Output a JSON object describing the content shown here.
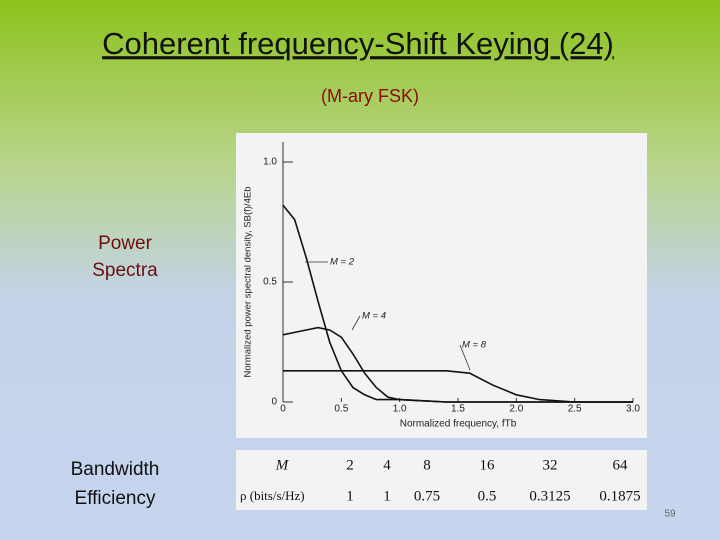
{
  "header": {
    "title": "Coherent frequency-Shift Keying (24)",
    "subtitle": "(M-ary FSK)"
  },
  "labels": {
    "spectra": "Power Spectra",
    "efficiency": "Bandwidth Efficiency"
  },
  "chart_data": {
    "type": "line",
    "y_label": "Normalized power spectral density, SB(f)/4Eb",
    "x_label": "Normalized frequency, fTb",
    "x": [
      0,
      0.1,
      0.2,
      0.3,
      0.4,
      0.5,
      0.6,
      0.7,
      0.8,
      0.9,
      1.0,
      1.2,
      1.4,
      1.6,
      1.8,
      2.0,
      2.2,
      2.5,
      3.0
    ],
    "series": [
      {
        "name": "M = 2",
        "color": "#111111",
        "values": [
          0.82,
          0.76,
          0.6,
          0.42,
          0.25,
          0.13,
          0.06,
          0.03,
          0.01,
          0.01,
          0.01,
          0.005,
          0,
          0,
          0,
          0,
          0,
          0,
          0
        ]
      },
      {
        "name": "M = 4",
        "color": "#111111",
        "values": [
          0.28,
          0.29,
          0.3,
          0.31,
          0.3,
          0.27,
          0.2,
          0.12,
          0.06,
          0.02,
          0.01,
          0.005,
          0,
          0,
          0,
          0,
          0,
          0,
          0
        ]
      },
      {
        "name": "M = 8",
        "color": "#111111",
        "values": [
          0.13,
          0.13,
          0.13,
          0.13,
          0.13,
          0.13,
          0.13,
          0.13,
          0.13,
          0.13,
          0.13,
          0.13,
          0.13,
          0.12,
          0.07,
          0.03,
          0.01,
          0,
          0
        ]
      }
    ],
    "xlim": [
      0,
      3
    ],
    "ylim": [
      0,
      1
    ],
    "xticks": [
      0,
      0.5,
      {
        "value": 1,
        "label": "1.0"
      },
      1.5,
      {
        "value": 2,
        "label": "2.0"
      },
      2.5,
      {
        "value": 3,
        "label": "3.0"
      }
    ],
    "yticks": [
      0,
      0.5,
      {
        "value": 1,
        "label": "1.0"
      }
    ]
  },
  "table": {
    "rows": [
      [
        "M",
        "2",
        "4",
        "8",
        "16",
        "32",
        "64"
      ],
      [
        "ρ (bits/s/Hz)",
        "1",
        "1",
        "0.75",
        "0.5",
        "0.3125",
        "0.1875"
      ]
    ]
  },
  "footer": {
    "page": "59"
  }
}
